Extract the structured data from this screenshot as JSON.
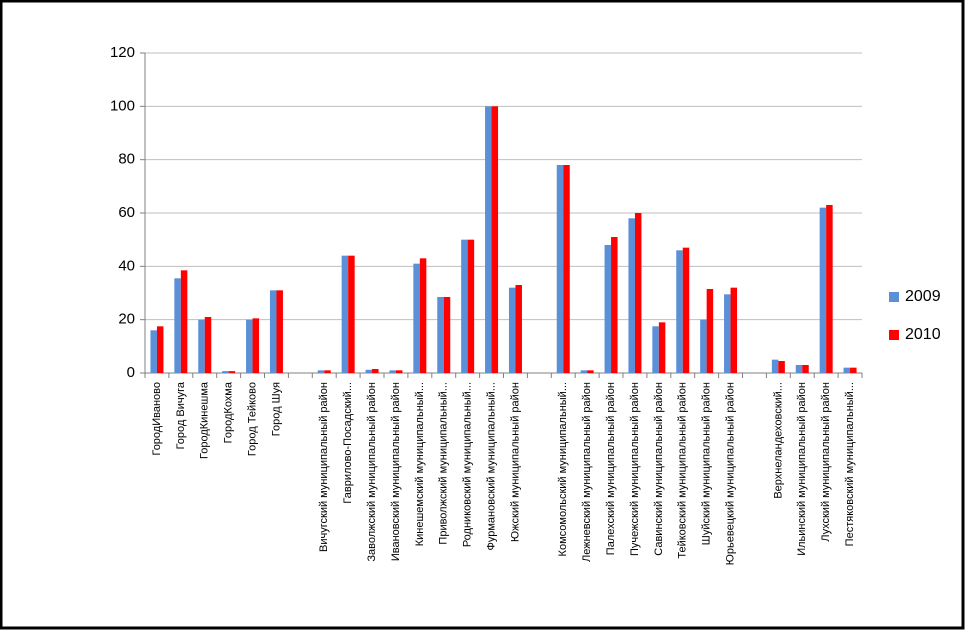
{
  "chart_data": {
    "type": "bar",
    "categories": [
      "ГородИваново",
      "Город Вичуга",
      "ГородКинешма",
      "ГородКохма",
      "Город Тейково",
      "Город Шуя",
      null,
      "Вичугский муниципальный район",
      "Гаврилово-Посадский...",
      "Заволжский муниципальный район",
      "Ивановский муниципальный район",
      "Кинешемский муниципальный...",
      "Приволжский муниципальный...",
      "Родниковский муниципальный...",
      "Фурмановский муниципальный...",
      "Южский муниципальный район",
      null,
      "Комсомольский муниципальный...",
      "Лежневский муниципальный район",
      "Палехский муниципальный район",
      "Пучежский муниципальный район",
      "Савинский муниципальный район",
      "Тейковский муниципальный район",
      "Шуйский муниципальный район",
      "Юрьевецкий муниципальный район",
      null,
      "Верхнеландеховский...",
      "Ильинский муниципальный район",
      "Лухский муниципальный район",
      "Пестяковский муниципальный..."
    ],
    "series": [
      {
        "name": "2009",
        "color": "#5b8fd8",
        "values": [
          16,
          35.5,
          20,
          0.7,
          20,
          31,
          null,
          1,
          44,
          1.2,
          1,
          41,
          28.5,
          50,
          100,
          32,
          null,
          78,
          1,
          48,
          58,
          17.5,
          46,
          20,
          29.5,
          null,
          5,
          3,
          62,
          2
        ]
      },
      {
        "name": "2010",
        "color": "#ff0000",
        "values": [
          17.5,
          38.5,
          21,
          0.7,
          20.5,
          31,
          null,
          1,
          44,
          1.5,
          1,
          43,
          28.5,
          50,
          100,
          33,
          null,
          78,
          1,
          51,
          60,
          19,
          47,
          31.5,
          32,
          null,
          4.5,
          3,
          63,
          2
        ]
      }
    ],
    "ylim": [
      0,
      120
    ],
    "yticks": [
      0,
      20,
      40,
      60,
      80,
      100,
      120
    ],
    "grid": true,
    "legend": "right"
  }
}
